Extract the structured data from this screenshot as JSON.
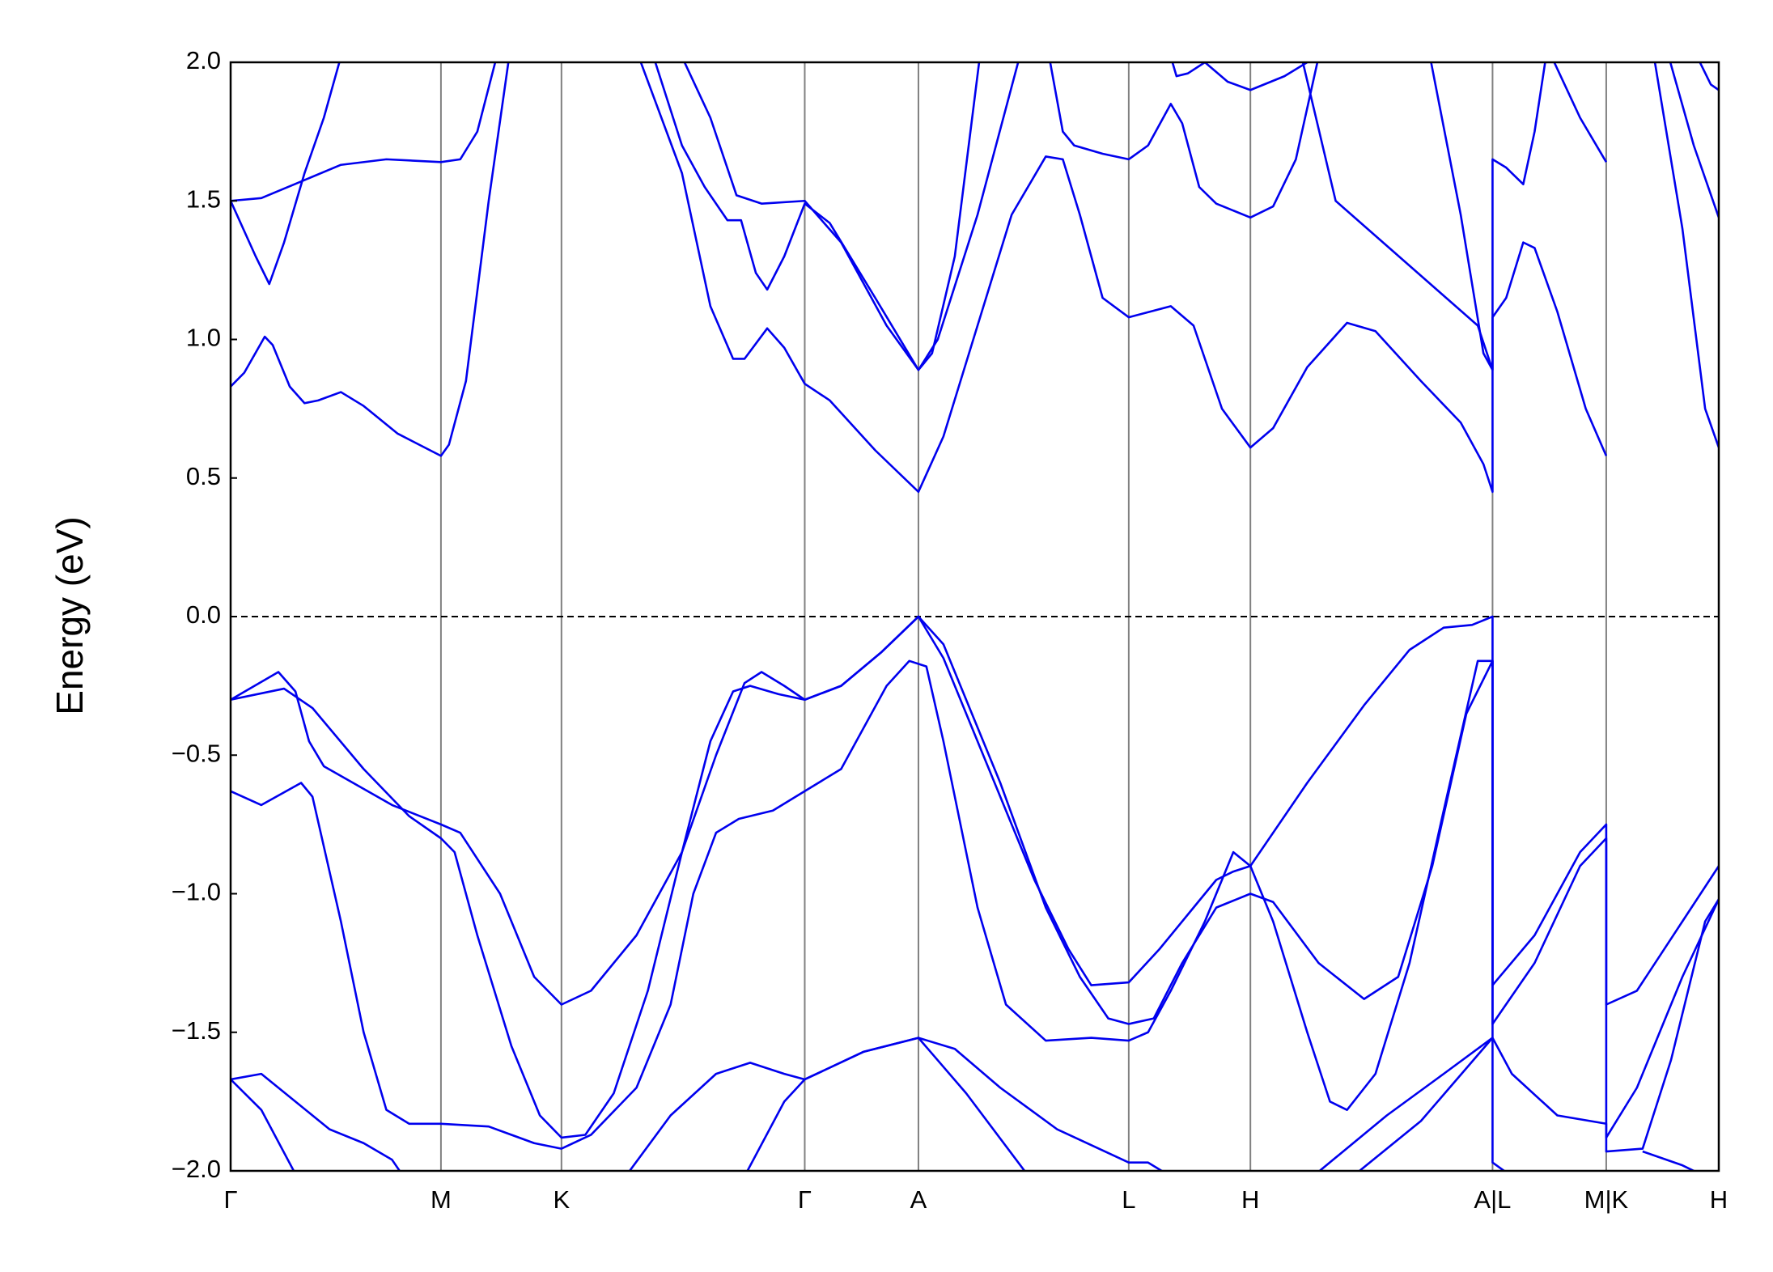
{
  "chart_data": {
    "type": "line",
    "ylabel": "Energy (eV)",
    "ylim": [
      -2,
      2
    ],
    "yticks": [
      {
        "value": 2,
        "label": "2.0"
      },
      {
        "value": 1.5,
        "label": "1.5"
      },
      {
        "value": 1,
        "label": "1.0"
      },
      {
        "value": 0.5,
        "label": "0.5"
      },
      {
        "value": 0,
        "label": "0.0"
      },
      {
        "value": -0.5,
        "label": "−0.5"
      },
      {
        "value": -1,
        "label": "−1.0"
      },
      {
        "value": -1.5,
        "label": "−1.5"
      },
      {
        "value": -2,
        "label": "−2.0"
      }
    ],
    "xlim": [
      0,
      1.309
    ],
    "xticks": [
      {
        "value": 0,
        "label": "Γ"
      },
      {
        "value": 0.185,
        "label": "M"
      },
      {
        "value": 0.291,
        "label": "K"
      },
      {
        "value": 0.505,
        "label": "Γ"
      },
      {
        "value": 0.605,
        "label": "A"
      },
      {
        "value": 0.79,
        "label": "L"
      },
      {
        "value": 0.897,
        "label": "H"
      },
      {
        "value": 1.11,
        "label": "A|L"
      },
      {
        "value": 1.21,
        "label": "M|K"
      },
      {
        "value": 1.309,
        "label": "H"
      }
    ],
    "xgrid": true,
    "grid_color": "#808080",
    "fermi_level": 0,
    "series": [
      {
        "color": "#0000ee",
        "x": [
          0,
          0.042,
          0.057,
          0.069,
          0.082,
          0.142,
          0.185,
          0.202,
          0.237,
          0.267,
          0.291,
          0.317,
          0.357,
          0.397,
          0.427,
          0.452,
          0.467,
          0.487,
          0.505,
          0.537,
          0.572,
          0.605,
          0.627,
          0.667,
          0.707,
          0.737,
          0.757,
          0.79,
          0.817,
          0.847,
          0.867,
          0.882,
          0.897,
          0.947,
          0.997,
          1.037,
          1.067,
          1.092,
          1.11,
          1.11,
          1.147,
          1.187,
          1.21,
          1.21,
          1.237,
          1.277,
          1.309
        ],
        "values": [
          -0.3,
          -0.2,
          -0.27,
          -0.45,
          -0.54,
          -0.68,
          -0.75,
          -0.78,
          -1.0,
          -1.3,
          -1.4,
          -1.35,
          -1.15,
          -0.85,
          -0.5,
          -0.24,
          -0.2,
          -0.25,
          -0.3,
          -0.25,
          -0.13,
          0,
          -0.15,
          -0.55,
          -0.95,
          -1.2,
          -1.33,
          -1.32,
          -1.2,
          -1.05,
          -0.95,
          -0.92,
          -0.9,
          -0.6,
          -0.32,
          -0.12,
          -0.04,
          -0.03,
          0,
          -1.33,
          -1.15,
          -0.85,
          -0.75,
          -1.4,
          -1.35,
          -1.1,
          -0.9
        ]
      },
      {
        "color": "#0000ee",
        "x": [
          0,
          0.047,
          0.072,
          0.117,
          0.157,
          0.185,
          0.197,
          0.217,
          0.247,
          0.272,
          0.291,
          0.312,
          0.337,
          0.367,
          0.397,
          0.422,
          0.442,
          0.457,
          0.482,
          0.505,
          0.537,
          0.572,
          0.605,
          0.627,
          0.677,
          0.717,
          0.747,
          0.772,
          0.79,
          0.812,
          0.837,
          0.867,
          0.897,
          0.917,
          0.957,
          0.997,
          1.027,
          1.057,
          1.087,
          1.11,
          1.11,
          1.147,
          1.187,
          1.21,
          1.21,
          1.237,
          1.277,
          1.309
        ],
        "values": [
          -0.3,
          -0.26,
          -0.33,
          -0.55,
          -0.72,
          -0.8,
          -0.85,
          -1.15,
          -1.55,
          -1.8,
          -1.88,
          -1.87,
          -1.72,
          -1.35,
          -0.85,
          -0.45,
          -0.27,
          -0.25,
          -0.28,
          -0.3,
          -0.25,
          -0.13,
          0,
          -0.1,
          -0.6,
          -1.05,
          -1.3,
          -1.45,
          -1.47,
          -1.45,
          -1.25,
          -1.05,
          -1.0,
          -1.03,
          -1.25,
          -1.38,
          -1.3,
          -0.9,
          -0.35,
          -0.16,
          -1.47,
          -1.25,
          -0.9,
          -0.8,
          -1.88,
          -1.7,
          -1.3,
          -1.02
        ]
      },
      {
        "color": "#0000ee",
        "x": [
          0,
          0.027,
          0.062,
          0.072,
          0.097,
          0.117,
          0.137,
          0.157,
          0.185,
          0.227,
          0.267,
          0.291,
          0.317,
          0.357,
          0.387,
          0.407,
          0.427,
          0.447,
          0.477,
          0.505,
          0.537,
          0.577,
          0.597,
          0.612,
          0.627,
          0.657,
          0.682,
          0.717,
          0.757,
          0.79,
          0.807,
          0.827,
          0.857,
          0.882,
          0.897,
          0.917,
          0.947,
          0.967,
          0.982,
          1.007,
          1.037,
          1.067,
          1.097,
          1.11,
          1.11,
          1.127,
          1.167,
          1.21,
          1.21,
          1.242,
          1.267,
          1.297,
          1.309
        ],
        "values": [
          -0.63,
          -0.68,
          -0.6,
          -0.65,
          -1.1,
          -1.5,
          -1.78,
          -1.83,
          -1.83,
          -1.84,
          -1.9,
          -1.92,
          -1.87,
          -1.7,
          -1.4,
          -1.0,
          -0.78,
          -0.73,
          -0.7,
          -0.63,
          -0.55,
          -0.25,
          -0.16,
          -0.18,
          -0.45,
          -1.05,
          -1.4,
          -1.53,
          -1.52,
          -1.53,
          -1.5,
          -1.35,
          -1.1,
          -0.85,
          -0.9,
          -1.1,
          -1.5,
          -1.75,
          -1.78,
          -1.65,
          -1.25,
          -0.7,
          -0.16,
          -0.16,
          -1.52,
          -1.65,
          -1.8,
          -1.83,
          -1.93,
          -1.92,
          -1.6,
          -1.1,
          -1.02
        ]
      },
      {
        "color": "#0000ee",
        "x": [
          0,
          0.027,
          0.057,
          0.087,
          0.117,
          0.142,
          0.157
        ],
        "values": [
          -1.67,
          -1.65,
          -1.75,
          -1.85,
          -1.9,
          -1.96,
          -2.05
        ]
      },
      {
        "color": "#0000ee",
        "x": [
          0,
          0.027,
          0.062
        ],
        "values": [
          -1.67,
          -1.78,
          -2.05
        ]
      },
      {
        "color": "#0000ee",
        "x": [
          0.342,
          0.387,
          0.427,
          0.457,
          0.487,
          0.505,
          0.557,
          0.605,
          0.637,
          0.677,
          0.727,
          0.79,
          0.807,
          0.827
        ],
        "values": [
          -2.05,
          -1.8,
          -1.65,
          -1.61,
          -1.65,
          -1.67,
          -1.57,
          -1.52,
          -1.56,
          -1.7,
          -1.85,
          -1.97,
          -1.97,
          -2.02
        ]
      },
      {
        "color": "#0000ee",
        "x": [
          0.452,
          0.487,
          0.505,
          0.557,
          0.605,
          0.647,
          0.702
        ],
        "values": [
          -2.02,
          -1.75,
          -1.67,
          -1.57,
          -1.52,
          -1.72,
          -2.02
        ]
      },
      {
        "color": "#0000ee",
        "x": [
          0.952,
          1.017,
          1.067,
          1.11,
          1.11,
          1.127
        ],
        "values": [
          -2.02,
          -1.8,
          -1.65,
          -1.52,
          -1.97,
          -2.02
        ]
      },
      {
        "color": "#0000ee",
        "x": [
          0.987,
          1.047,
          1.11
        ],
        "values": [
          -2.02,
          -1.82,
          -1.52
        ]
      },
      {
        "color": "#0000ee",
        "x": [
          1.242,
          1.277,
          1.297
        ],
        "values": [
          -1.93,
          -1.98,
          -2.02
        ]
      },
      {
        "color": "#0000ee",
        "x": [
          0,
          0.012,
          0.03,
          0.037,
          0.052,
          0.065,
          0.077,
          0.097,
          0.117,
          0.147,
          0.185,
          0.192,
          0.207,
          0.227,
          0.245
        ],
        "values": [
          0.83,
          0.88,
          1.01,
          0.98,
          0.83,
          0.77,
          0.78,
          0.81,
          0.76,
          0.66,
          0.58,
          0.62,
          0.85,
          1.5,
          2.02
        ]
      },
      {
        "color": "#0000ee",
        "x": [
          0,
          0.022,
          0.034,
          0.047,
          0.065,
          0.082,
          0.097
        ],
        "values": [
          1.5,
          1.3,
          1.2,
          1.35,
          1.6,
          1.8,
          2.02
        ]
      },
      {
        "color": "#0000ee",
        "x": [
          0,
          0.027,
          0.062,
          0.097,
          0.137,
          0.185,
          0.202,
          0.217,
          0.234
        ],
        "values": [
          1.5,
          1.51,
          1.57,
          1.63,
          1.65,
          1.64,
          1.65,
          1.75,
          2.02
        ]
      },
      {
        "color": "#0000ee",
        "x": [
          0.359,
          0.397,
          0.422,
          0.442,
          0.452,
          0.472,
          0.487,
          0.505,
          0.527,
          0.567,
          0.605,
          0.627,
          0.657,
          0.687,
          0.717,
          0.732,
          0.747,
          0.767,
          0.79,
          0.827,
          0.847,
          0.872,
          0.897,
          0.917,
          0.947,
          0.982,
          1.007,
          1.047,
          1.082,
          1.102,
          1.11,
          1.11,
          1.122,
          1.137,
          1.147,
          1.167,
          1.192,
          1.21
        ],
        "values": [
          2.02,
          1.6,
          1.12,
          0.93,
          0.93,
          1.04,
          0.97,
          0.84,
          0.78,
          0.6,
          0.45,
          0.65,
          1.05,
          1.45,
          1.66,
          1.65,
          1.45,
          1.15,
          1.08,
          1.12,
          1.05,
          0.75,
          0.61,
          0.68,
          0.9,
          1.06,
          1.03,
          0.85,
          0.7,
          0.55,
          0.45,
          1.08,
          1.15,
          1.35,
          1.33,
          1.1,
          0.75,
          0.58
        ]
      },
      {
        "color": "#0000ee",
        "x": [
          0.372,
          0.397,
          0.417,
          0.437,
          0.449,
          0.462,
          0.472,
          0.487,
          0.505,
          0.527,
          0.567,
          0.605,
          0.617,
          0.637,
          0.659
        ],
        "values": [
          2.02,
          1.7,
          1.55,
          1.43,
          1.43,
          1.24,
          1.18,
          1.3,
          1.49,
          1.42,
          1.15,
          0.89,
          0.95,
          1.3,
          2.02
        ]
      },
      {
        "color": "#0000ee",
        "x": [
          0.397,
          0.422,
          0.445,
          0.467,
          0.505,
          0.537,
          0.577,
          0.605,
          0.622,
          0.657,
          0.694
        ],
        "values": [
          2.02,
          1.8,
          1.52,
          1.49,
          1.5,
          1.35,
          1.05,
          0.89,
          1.0,
          1.45,
          2.02
        ]
      },
      {
        "color": "#0000ee",
        "x": [
          0.72,
          0.732,
          0.742,
          0.767,
          0.79,
          0.807,
          0.827,
          0.837,
          0.852,
          0.867,
          0.897,
          0.917,
          0.937,
          0.957
        ],
        "values": [
          2.02,
          1.75,
          1.7,
          1.67,
          1.65,
          1.7,
          1.85,
          1.78,
          1.55,
          1.49,
          1.44,
          1.48,
          1.65,
          2.02
        ]
      },
      {
        "color": "#0000ee",
        "x": [
          0.827,
          0.832,
          0.842,
          0.857,
          0.877,
          0.897,
          0.927,
          0.955
        ],
        "values": [
          2.02,
          1.95,
          1.96,
          2.0,
          1.93,
          1.9,
          1.95,
          2.02
        ]
      },
      {
        "color": "#0000ee",
        "x": [
          0.942,
          0.972,
          1.097,
          1.11,
          1.11,
          1.122,
          1.137,
          1.147,
          1.157
        ],
        "values": [
          2.02,
          1.5,
          1.05,
          0.89,
          1.65,
          1.62,
          1.56,
          1.75,
          2.02
        ]
      },
      {
        "color": "#0000ee",
        "x": [
          1.055,
          1.082,
          1.102,
          1.11
        ],
        "values": [
          2.02,
          1.45,
          0.95,
          0.89
        ]
      },
      {
        "color": "#0000ee",
        "x": [
          1.162,
          1.187,
          1.21
        ],
        "values": [
          2.02,
          1.8,
          1.64
        ]
      },
      {
        "color": "#0000ee",
        "x": [
          1.252,
          1.277,
          1.297,
          1.309
        ],
        "values": [
          2.02,
          1.4,
          0.75,
          0.61
        ]
      },
      {
        "color": "#0000ee",
        "x": [
          1.265,
          1.287,
          1.309
        ],
        "values": [
          2.02,
          1.7,
          1.44
        ]
      },
      {
        "color": "#0000ee",
        "x": [
          1.29,
          1.302,
          1.309
        ],
        "values": [
          2.02,
          1.92,
          1.9
        ]
      }
    ]
  }
}
